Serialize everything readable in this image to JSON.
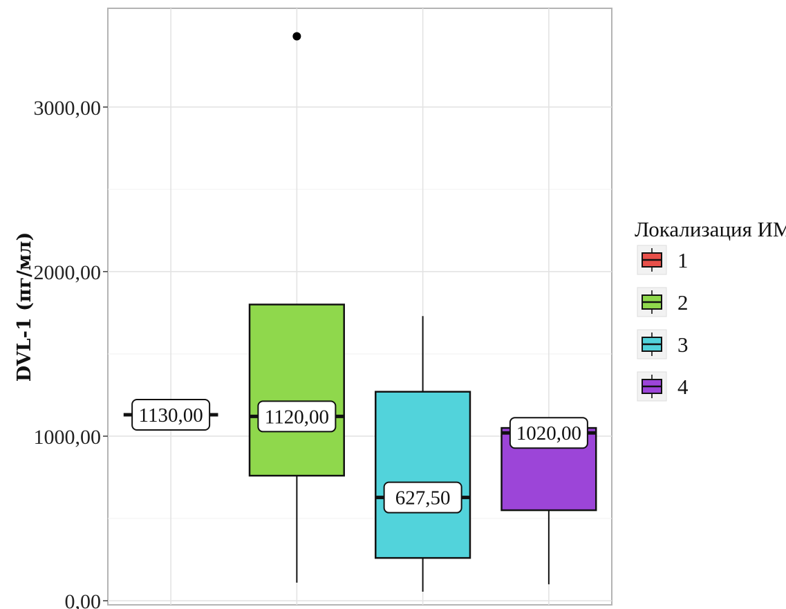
{
  "chart_data": {
    "type": "box",
    "ylabel": "DVL-1 (пг/мл)",
    "ylim": [
      -25,
      3600
    ],
    "yticks": [
      0,
      1000,
      2000,
      3000
    ],
    "ytick_labels": [
      "0,00",
      "1000,00",
      "2000,00",
      "3000,00"
    ],
    "grid": true,
    "legend": {
      "title": "Локализация ИМ",
      "position": "right"
    },
    "series": [
      {
        "name": "1",
        "color": "#e8504a",
        "min": 1130,
        "q1": 1130,
        "median": 1130,
        "q3": 1130,
        "max": 1130,
        "outliers": [],
        "median_label": "1130,00"
      },
      {
        "name": "2",
        "color": "#8fd84c",
        "min": 110,
        "q1": 760,
        "median": 1120,
        "q3": 1800,
        "max": 1800,
        "outliers": [
          3430
        ],
        "median_label": "1120,00"
      },
      {
        "name": "3",
        "color": "#52d3db",
        "min": 55,
        "q1": 260,
        "median": 627.5,
        "q3": 1270,
        "max": 1730,
        "outliers": [],
        "median_label": "627,50"
      },
      {
        "name": "4",
        "color": "#9c45d8",
        "min": 100,
        "q1": 550,
        "median": 1020,
        "q3": 1050,
        "max": 1050,
        "outliers": [],
        "median_label": "1020,00"
      }
    ]
  }
}
